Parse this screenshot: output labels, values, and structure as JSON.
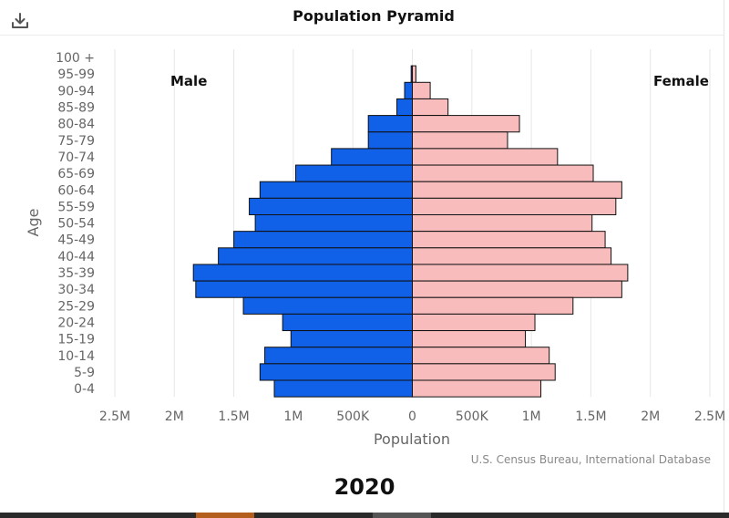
{
  "title": "Population Pyramid",
  "download_icon": "download-icon",
  "male_label": "Male",
  "female_label": "Female",
  "source": "U.S. Census Bureau, International Database",
  "year": "2020",
  "colors": {
    "male": "#1060e8",
    "female": "#f9bcbc",
    "outline": "#111111"
  },
  "chart_data": {
    "type": "bar",
    "orientation": "horizontal-pyramid",
    "xlabel": "Population",
    "ylabel": "Age",
    "xlim": [
      -2500000,
      2500000
    ],
    "grid": true,
    "x_ticks": [
      {
        "value": -2500000,
        "label": "2.5M"
      },
      {
        "value": -2000000,
        "label": "2M"
      },
      {
        "value": -1500000,
        "label": "1.5M"
      },
      {
        "value": -1000000,
        "label": "1M"
      },
      {
        "value": -500000,
        "label": "500K"
      },
      {
        "value": 0,
        "label": "0"
      },
      {
        "value": 500000,
        "label": "500K"
      },
      {
        "value": 1000000,
        "label": "1M"
      },
      {
        "value": 1500000,
        "label": "1.5M"
      },
      {
        "value": 2000000,
        "label": "2M"
      },
      {
        "value": 2500000,
        "label": "2.5M"
      }
    ],
    "categories": [
      "100 +",
      "95-99",
      "90-94",
      "85-89",
      "80-84",
      "75-79",
      "70-74",
      "65-69",
      "60-64",
      "55-59",
      "50-54",
      "45-49",
      "40-44",
      "35-39",
      "30-34",
      "25-29",
      "20-24",
      "15-19",
      "10-14",
      "5-9",
      "0-4"
    ],
    "series": [
      {
        "name": "Male",
        "values": [
          0,
          10000,
          65000,
          130000,
          370000,
          370000,
          680000,
          980000,
          1280000,
          1370000,
          1320000,
          1500000,
          1630000,
          1840000,
          1820000,
          1420000,
          1090000,
          1020000,
          1240000,
          1280000,
          1160000
        ]
      },
      {
        "name": "Female",
        "values": [
          0,
          30000,
          150000,
          300000,
          900000,
          800000,
          1220000,
          1520000,
          1760000,
          1710000,
          1510000,
          1620000,
          1670000,
          1810000,
          1760000,
          1350000,
          1030000,
          950000,
          1150000,
          1200000,
          1080000
        ]
      }
    ]
  }
}
